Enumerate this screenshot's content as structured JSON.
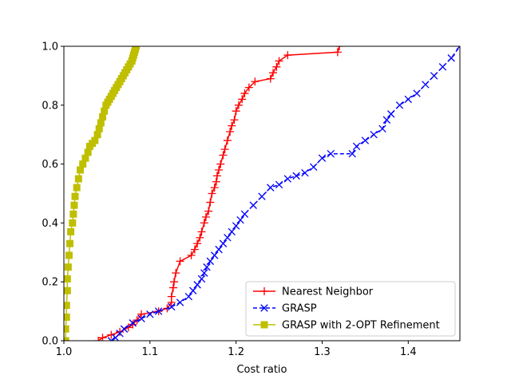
{
  "chart_data": {
    "type": "line",
    "title": "",
    "xlabel": "Cost ratio",
    "ylabel": "",
    "xlim": [
      1.0,
      1.46
    ],
    "ylim": [
      0.0,
      1.0
    ],
    "xticks": [
      "1.0",
      "1.1",
      "1.2",
      "1.3",
      "1.4"
    ],
    "yticks": [
      "0.0",
      "0.2",
      "0.4",
      "0.6",
      "0.8",
      "1.0"
    ],
    "grid": false,
    "legend_position": "lower-right",
    "series": [
      {
        "name": "Nearest Neighbor",
        "color": "#ff0000",
        "linestyle": "solid",
        "marker": "plus",
        "x": [
          1.04,
          1.045,
          1.055,
          1.065,
          1.075,
          1.08,
          1.085,
          1.09,
          1.11,
          1.12,
          1.125,
          1.125,
          1.127,
          1.128,
          1.13,
          1.135,
          1.148,
          1.152,
          1.155,
          1.158,
          1.16,
          1.163,
          1.165,
          1.168,
          1.17,
          1.172,
          1.175,
          1.177,
          1.178,
          1.18,
          1.182,
          1.185,
          1.187,
          1.19,
          1.193,
          1.195,
          1.198,
          1.2,
          1.203,
          1.207,
          1.21,
          1.215,
          1.222,
          1.24,
          1.243,
          1.247,
          1.25,
          1.26,
          1.318,
          1.32
        ],
        "y": [
          0.0,
          0.01,
          0.02,
          0.03,
          0.045,
          0.055,
          0.07,
          0.09,
          0.1,
          0.11,
          0.13,
          0.15,
          0.18,
          0.2,
          0.23,
          0.27,
          0.29,
          0.31,
          0.33,
          0.35,
          0.37,
          0.4,
          0.42,
          0.44,
          0.47,
          0.5,
          0.52,
          0.54,
          0.56,
          0.58,
          0.6,
          0.63,
          0.65,
          0.68,
          0.71,
          0.73,
          0.75,
          0.78,
          0.8,
          0.82,
          0.84,
          0.86,
          0.88,
          0.89,
          0.91,
          0.93,
          0.95,
          0.97,
          0.98,
          1.0
        ]
      },
      {
        "name": "GRASP",
        "color": "#0000ff",
        "linestyle": "dashed",
        "marker": "x",
        "x": [
          1.055,
          1.06,
          1.065,
          1.07,
          1.08,
          1.09,
          1.1,
          1.11,
          1.125,
          1.135,
          1.145,
          1.15,
          1.155,
          1.16,
          1.163,
          1.166,
          1.17,
          1.175,
          1.18,
          1.185,
          1.19,
          1.195,
          1.2,
          1.205,
          1.21,
          1.22,
          1.23,
          1.24,
          1.25,
          1.26,
          1.27,
          1.28,
          1.29,
          1.3,
          1.31,
          1.335,
          1.34,
          1.35,
          1.36,
          1.37,
          1.375,
          1.38,
          1.39,
          1.4,
          1.41,
          1.42,
          1.43,
          1.44,
          1.45,
          1.46
        ],
        "y": [
          0.0,
          0.01,
          0.025,
          0.04,
          0.06,
          0.075,
          0.09,
          0.1,
          0.115,
          0.13,
          0.15,
          0.17,
          0.19,
          0.21,
          0.23,
          0.25,
          0.27,
          0.29,
          0.31,
          0.33,
          0.35,
          0.37,
          0.39,
          0.41,
          0.43,
          0.46,
          0.49,
          0.52,
          0.53,
          0.55,
          0.56,
          0.57,
          0.59,
          0.62,
          0.635,
          0.635,
          0.66,
          0.68,
          0.7,
          0.72,
          0.75,
          0.77,
          0.8,
          0.82,
          0.84,
          0.87,
          0.9,
          0.93,
          0.96,
          1.0
        ]
      },
      {
        "name": "GRASP with 2-OPT Refinement",
        "color": "#bfbf00",
        "linestyle": "solid",
        "marker": "square",
        "x": [
          1.002,
          1.002,
          1.003,
          1.003,
          1.004,
          1.004,
          1.005,
          1.006,
          1.007,
          1.008,
          1.01,
          1.011,
          1.012,
          1.013,
          1.015,
          1.017,
          1.019,
          1.022,
          1.025,
          1.028,
          1.03,
          1.033,
          1.036,
          1.039,
          1.041,
          1.043,
          1.045,
          1.047,
          1.049,
          1.051,
          1.053,
          1.055,
          1.057,
          1.059,
          1.061,
          1.063,
          1.065,
          1.067,
          1.069,
          1.071,
          1.073,
          1.075,
          1.077,
          1.079,
          1.08,
          1.081,
          1.082,
          1.083,
          1.084
        ],
        "y": [
          0.0,
          0.04,
          0.08,
          0.12,
          0.17,
          0.21,
          0.25,
          0.29,
          0.33,
          0.37,
          0.4,
          0.43,
          0.46,
          0.49,
          0.52,
          0.55,
          0.58,
          0.6,
          0.62,
          0.64,
          0.66,
          0.67,
          0.68,
          0.7,
          0.72,
          0.74,
          0.76,
          0.78,
          0.8,
          0.81,
          0.82,
          0.83,
          0.84,
          0.85,
          0.86,
          0.87,
          0.88,
          0.89,
          0.9,
          0.91,
          0.92,
          0.93,
          0.94,
          0.95,
          0.96,
          0.97,
          0.98,
          0.99,
          1.0
        ]
      }
    ]
  }
}
